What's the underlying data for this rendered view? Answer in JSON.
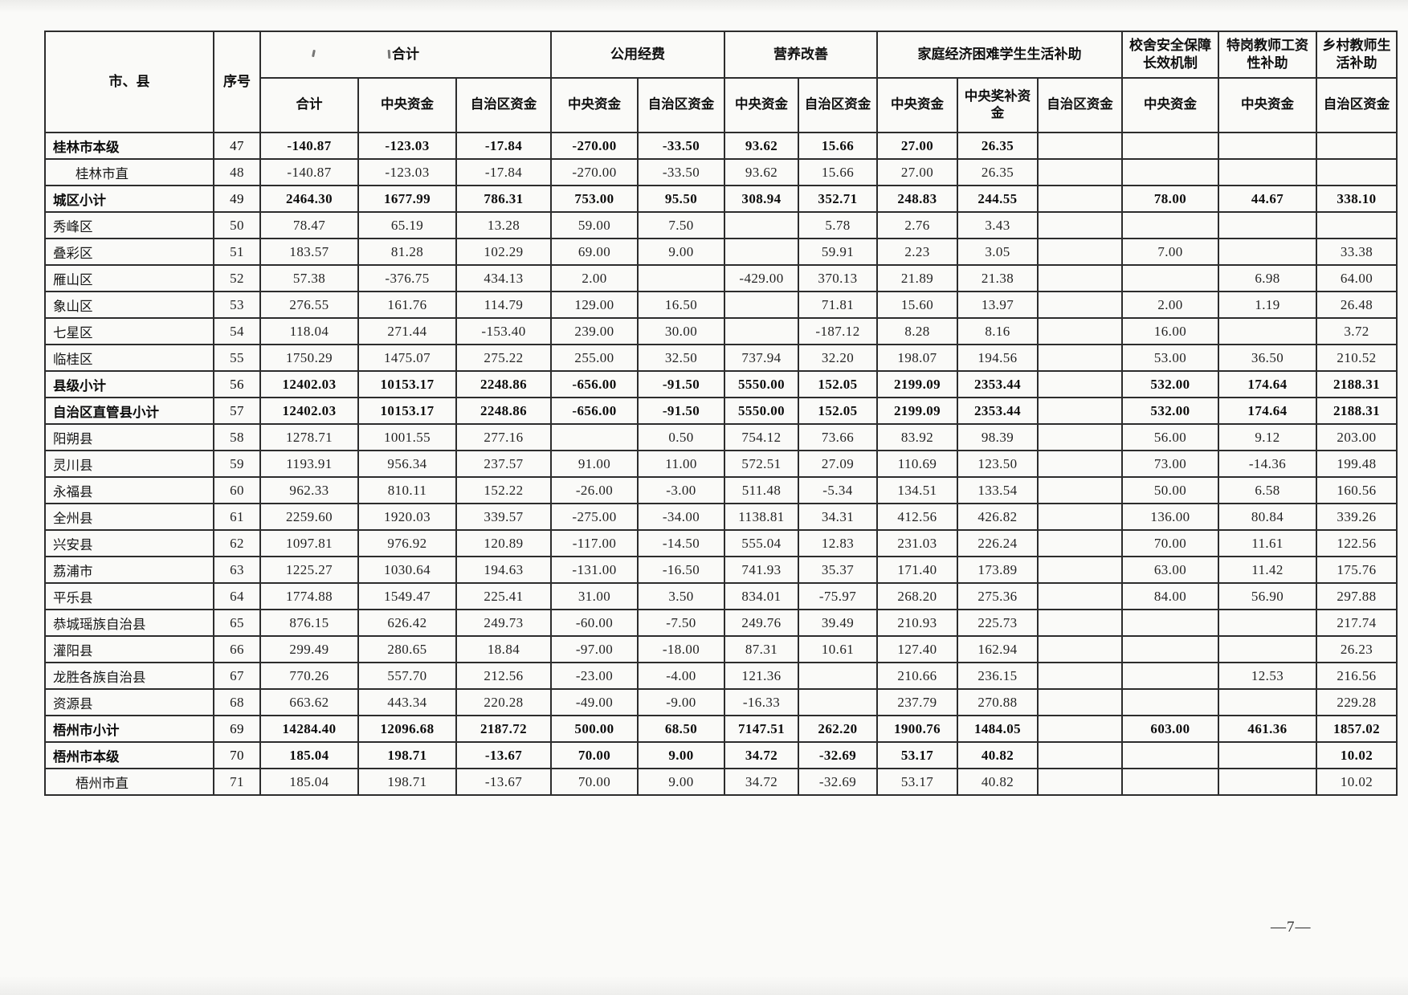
{
  "page": {
    "number": "—7—"
  },
  "table": {
    "corner_header": "市、县",
    "seq_header": "序号",
    "groups": [
      {
        "label": "合计",
        "cols": [
          "合计",
          "中央资金",
          "自治区资金"
        ]
      },
      {
        "label": "公用经费",
        "cols": [
          "中央资金",
          "自治区资金"
        ]
      },
      {
        "label": "营养改善",
        "cols": [
          "中央资金",
          "自治区资金"
        ]
      },
      {
        "label": "家庭经济困难学生生活补助",
        "cols": [
          "中央资金",
          "中央奖补资金",
          "自治区资金"
        ]
      },
      {
        "label": "校舍安全保障长效机制",
        "cols": [
          "中央资金"
        ]
      },
      {
        "label": "特岗教师工资性补助",
        "cols": [
          "中央资金"
        ]
      },
      {
        "label": "乡村教师生活补助",
        "cols": [
          "自治区资金"
        ]
      }
    ],
    "rows": [
      {
        "name": "桂林市本级",
        "seq": "47",
        "bold": true,
        "indent": false,
        "values": [
          "-140.87",
          "-123.03",
          "-17.84",
          "-270.00",
          "-33.50",
          "93.62",
          "15.66",
          "27.00",
          "26.35",
          "",
          "",
          "",
          ""
        ]
      },
      {
        "name": "桂林市直",
        "seq": "48",
        "bold": false,
        "indent": true,
        "values": [
          "-140.87",
          "-123.03",
          "-17.84",
          "-270.00",
          "-33.50",
          "93.62",
          "15.66",
          "27.00",
          "26.35",
          "",
          "",
          "",
          ""
        ]
      },
      {
        "name": "城区小计",
        "seq": "49",
        "bold": true,
        "indent": false,
        "values": [
          "2464.30",
          "1677.99",
          "786.31",
          "753.00",
          "95.50",
          "308.94",
          "352.71",
          "248.83",
          "244.55",
          "",
          "78.00",
          "44.67",
          "338.10"
        ]
      },
      {
        "name": "秀峰区",
        "seq": "50",
        "bold": false,
        "indent": false,
        "values": [
          "78.47",
          "65.19",
          "13.28",
          "59.00",
          "7.50",
          "",
          "5.78",
          "2.76",
          "3.43",
          "",
          "",
          "",
          ""
        ]
      },
      {
        "name": "叠彩区",
        "seq": "51",
        "bold": false,
        "indent": false,
        "values": [
          "183.57",
          "81.28",
          "102.29",
          "69.00",
          "9.00",
          "",
          "59.91",
          "2.23",
          "3.05",
          "",
          "7.00",
          "",
          "33.38"
        ]
      },
      {
        "name": "雁山区",
        "seq": "52",
        "bold": false,
        "indent": false,
        "values": [
          "57.38",
          "-376.75",
          "434.13",
          "2.00",
          "",
          "-429.00",
          "370.13",
          "21.89",
          "21.38",
          "",
          "",
          "6.98",
          "64.00"
        ]
      },
      {
        "name": "象山区",
        "seq": "53",
        "bold": false,
        "indent": false,
        "values": [
          "276.55",
          "161.76",
          "114.79",
          "129.00",
          "16.50",
          "",
          "71.81",
          "15.60",
          "13.97",
          "",
          "2.00",
          "1.19",
          "26.48"
        ]
      },
      {
        "name": "七星区",
        "seq": "54",
        "bold": false,
        "indent": false,
        "values": [
          "118.04",
          "271.44",
          "-153.40",
          "239.00",
          "30.00",
          "",
          "-187.12",
          "8.28",
          "8.16",
          "",
          "16.00",
          "",
          "3.72"
        ]
      },
      {
        "name": "临桂区",
        "seq": "55",
        "bold": false,
        "indent": false,
        "values": [
          "1750.29",
          "1475.07",
          "275.22",
          "255.00",
          "32.50",
          "737.94",
          "32.20",
          "198.07",
          "194.56",
          "",
          "53.00",
          "36.50",
          "210.52"
        ]
      },
      {
        "name": "县级小计",
        "seq": "56",
        "bold": true,
        "indent": false,
        "values": [
          "12402.03",
          "10153.17",
          "2248.86",
          "-656.00",
          "-91.50",
          "5550.00",
          "152.05",
          "2199.09",
          "2353.44",
          "",
          "532.00",
          "174.64",
          "2188.31"
        ]
      },
      {
        "name": "自治区直管县小计",
        "seq": "57",
        "bold": true,
        "indent": false,
        "values": [
          "12402.03",
          "10153.17",
          "2248.86",
          "-656.00",
          "-91.50",
          "5550.00",
          "152.05",
          "2199.09",
          "2353.44",
          "",
          "532.00",
          "174.64",
          "2188.31"
        ]
      },
      {
        "name": "阳朔县",
        "seq": "58",
        "bold": false,
        "indent": false,
        "values": [
          "1278.71",
          "1001.55",
          "277.16",
          "",
          "0.50",
          "754.12",
          "73.66",
          "83.92",
          "98.39",
          "",
          "56.00",
          "9.12",
          "203.00"
        ]
      },
      {
        "name": "灵川县",
        "seq": "59",
        "bold": false,
        "indent": false,
        "values": [
          "1193.91",
          "956.34",
          "237.57",
          "91.00",
          "11.00",
          "572.51",
          "27.09",
          "110.69",
          "123.50",
          "",
          "73.00",
          "-14.36",
          "199.48"
        ]
      },
      {
        "name": "永福县",
        "seq": "60",
        "bold": false,
        "indent": false,
        "values": [
          "962.33",
          "810.11",
          "152.22",
          "-26.00",
          "-3.00",
          "511.48",
          "-5.34",
          "134.51",
          "133.54",
          "",
          "50.00",
          "6.58",
          "160.56"
        ]
      },
      {
        "name": "全州县",
        "seq": "61",
        "bold": false,
        "indent": false,
        "values": [
          "2259.60",
          "1920.03",
          "339.57",
          "-275.00",
          "-34.00",
          "1138.81",
          "34.31",
          "412.56",
          "426.82",
          "",
          "136.00",
          "80.84",
          "339.26"
        ]
      },
      {
        "name": "兴安县",
        "seq": "62",
        "bold": false,
        "indent": false,
        "values": [
          "1097.81",
          "976.92",
          "120.89",
          "-117.00",
          "-14.50",
          "555.04",
          "12.83",
          "231.03",
          "226.24",
          "",
          "70.00",
          "11.61",
          "122.56"
        ]
      },
      {
        "name": "荔浦市",
        "seq": "63",
        "bold": false,
        "indent": false,
        "values": [
          "1225.27",
          "1030.64",
          "194.63",
          "-131.00",
          "-16.50",
          "741.93",
          "35.37",
          "171.40",
          "173.89",
          "",
          "63.00",
          "11.42",
          "175.76"
        ]
      },
      {
        "name": "平乐县",
        "seq": "64",
        "bold": false,
        "indent": false,
        "values": [
          "1774.88",
          "1549.47",
          "225.41",
          "31.00",
          "3.50",
          "834.01",
          "-75.97",
          "268.20",
          "275.36",
          "",
          "84.00",
          "56.90",
          "297.88"
        ]
      },
      {
        "name": "恭城瑶族自治县",
        "seq": "65",
        "bold": false,
        "indent": false,
        "values": [
          "876.15",
          "626.42",
          "249.73",
          "-60.00",
          "-7.50",
          "249.76",
          "39.49",
          "210.93",
          "225.73",
          "",
          "",
          "",
          "217.74"
        ]
      },
      {
        "name": "灌阳县",
        "seq": "66",
        "bold": false,
        "indent": false,
        "values": [
          "299.49",
          "280.65",
          "18.84",
          "-97.00",
          "-18.00",
          "87.31",
          "10.61",
          "127.40",
          "162.94",
          "",
          "",
          "",
          "26.23"
        ]
      },
      {
        "name": "龙胜各族自治县",
        "seq": "67",
        "bold": false,
        "indent": false,
        "values": [
          "770.26",
          "557.70",
          "212.56",
          "-23.00",
          "-4.00",
          "121.36",
          "",
          "210.66",
          "236.15",
          "",
          "",
          "12.53",
          "216.56"
        ]
      },
      {
        "name": "资源县",
        "seq": "68",
        "bold": false,
        "indent": false,
        "values": [
          "663.62",
          "443.34",
          "220.28",
          "-49.00",
          "-9.00",
          "-16.33",
          "",
          "237.79",
          "270.88",
          "",
          "",
          "",
          "229.28"
        ]
      },
      {
        "name": "梧州市小计",
        "seq": "69",
        "bold": true,
        "indent": false,
        "values": [
          "14284.40",
          "12096.68",
          "2187.72",
          "500.00",
          "68.50",
          "7147.51",
          "262.20",
          "1900.76",
          "1484.05",
          "",
          "603.00",
          "461.36",
          "1857.02"
        ]
      },
      {
        "name": "梧州市本级",
        "seq": "70",
        "bold": true,
        "indent": false,
        "values": [
          "185.04",
          "198.71",
          "-13.67",
          "70.00",
          "9.00",
          "34.72",
          "-32.69",
          "53.17",
          "40.82",
          "",
          "",
          "",
          "10.02"
        ]
      },
      {
        "name": "梧州市直",
        "seq": "71",
        "bold": false,
        "indent": true,
        "values": [
          "185.04",
          "198.71",
          "-13.67",
          "70.00",
          "9.00",
          "34.72",
          "-32.69",
          "53.17",
          "40.82",
          "",
          "",
          "",
          "10.02"
        ]
      }
    ]
  }
}
